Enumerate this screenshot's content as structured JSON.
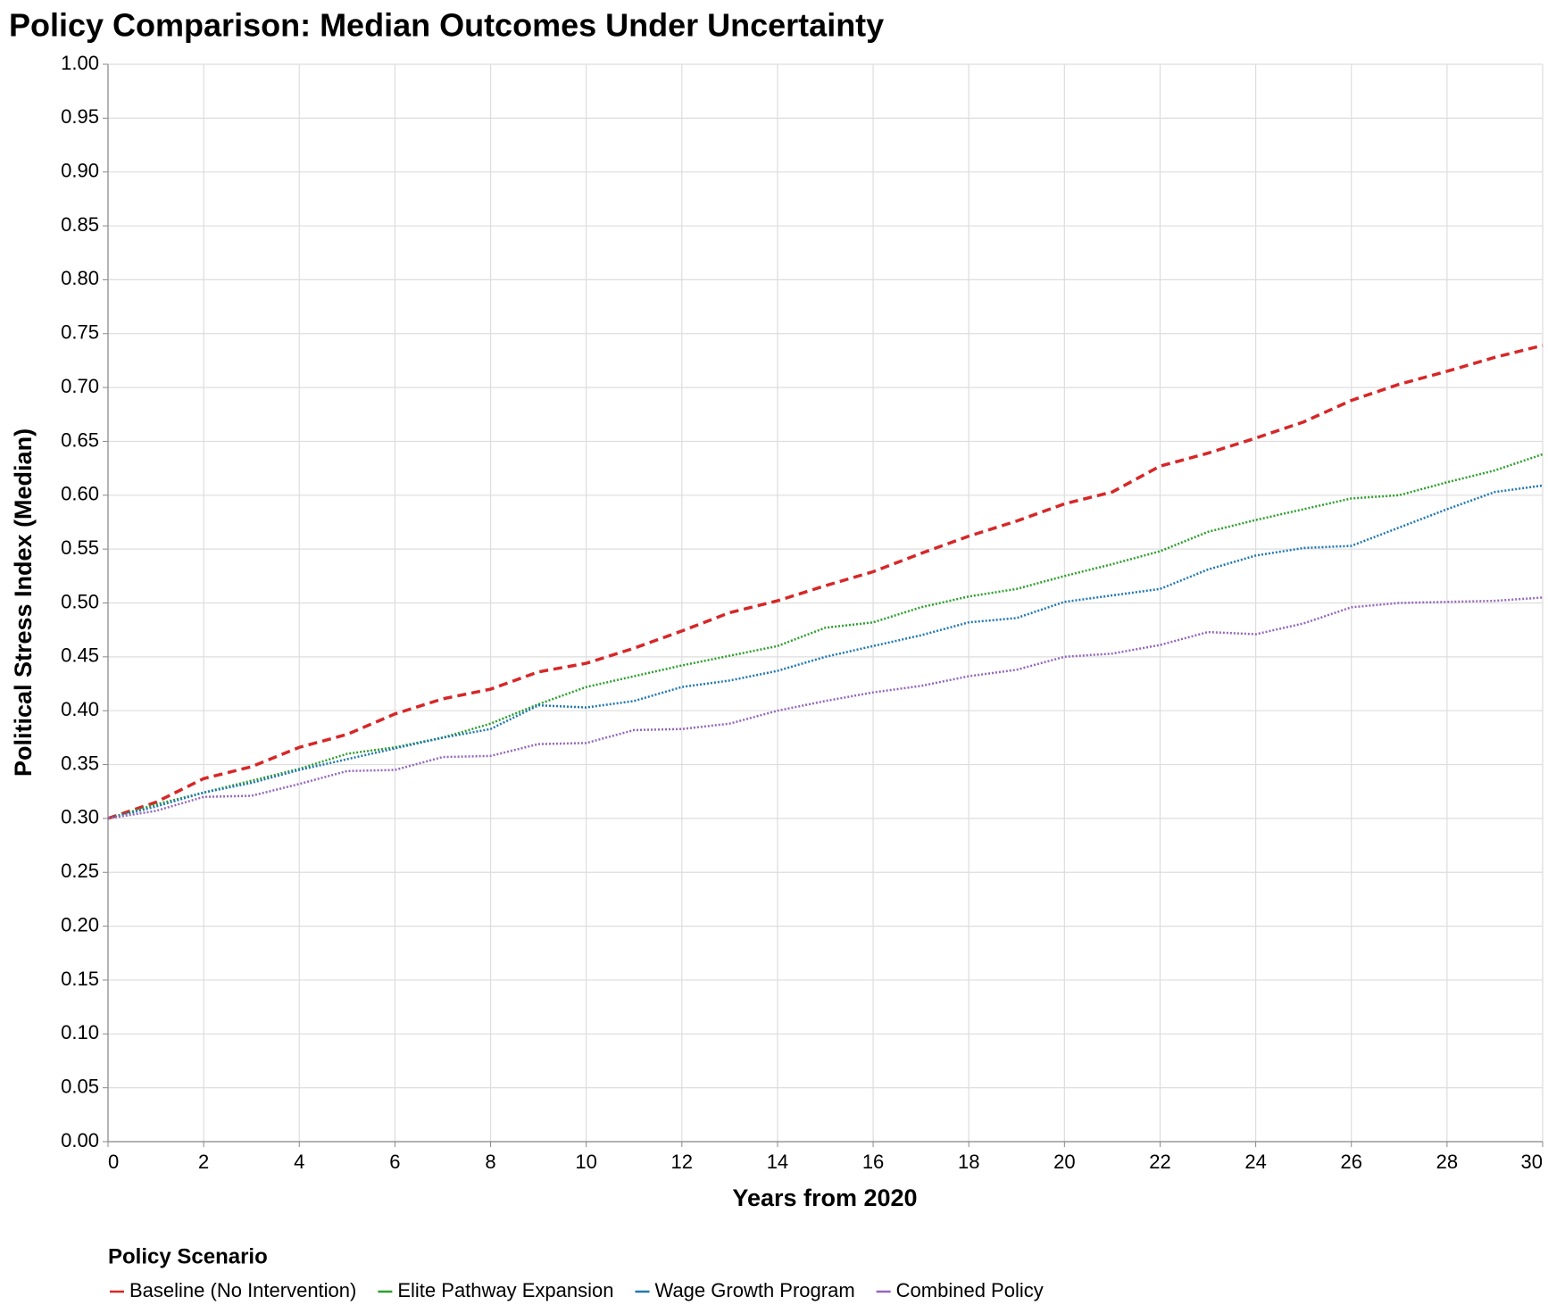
{
  "chart_data": {
    "type": "line",
    "title": "Policy Comparison: Median Outcomes Under Uncertainty",
    "x_label": "Years from 2020",
    "y_label": "Political Stress Index (Median)",
    "x": [
      0,
      1,
      2,
      3,
      4,
      5,
      6,
      7,
      8,
      9,
      10,
      11,
      12,
      13,
      14,
      15,
      16,
      17,
      18,
      19,
      20,
      21,
      22,
      23,
      24,
      25,
      26,
      27,
      28,
      29,
      30
    ],
    "series": [
      {
        "name": "Baseline (No Intervention)",
        "color": "#d62728",
        "dash": "dashed",
        "values": [
          0.3,
          0.315,
          0.337,
          0.348,
          0.366,
          0.378,
          0.397,
          0.411,
          0.42,
          0.436,
          0.444,
          0.458,
          0.474,
          0.491,
          0.502,
          0.516,
          0.529,
          0.546,
          0.562,
          0.576,
          0.592,
          0.603,
          0.627,
          0.639,
          0.653,
          0.668,
          0.688,
          0.703,
          0.715,
          0.728,
          0.739
        ]
      },
      {
        "name": "Elite Pathway Expansion",
        "color": "#2ca02c",
        "dash": "dotted",
        "values": [
          0.3,
          0.313,
          0.324,
          0.335,
          0.346,
          0.36,
          0.366,
          0.375,
          0.388,
          0.406,
          0.422,
          0.432,
          0.442,
          0.451,
          0.46,
          0.477,
          0.482,
          0.496,
          0.506,
          0.513,
          0.525,
          0.536,
          0.548,
          0.566,
          0.577,
          0.587,
          0.597,
          0.6,
          0.612,
          0.623,
          0.638
        ]
      },
      {
        "name": "Wage Growth Program",
        "color": "#1f77b4",
        "dash": "dotted",
        "values": [
          0.3,
          0.311,
          0.324,
          0.333,
          0.345,
          0.355,
          0.365,
          0.375,
          0.383,
          0.405,
          0.403,
          0.409,
          0.422,
          0.428,
          0.437,
          0.45,
          0.46,
          0.47,
          0.482,
          0.486,
          0.501,
          0.507,
          0.513,
          0.531,
          0.544,
          0.551,
          0.553,
          0.57,
          0.587,
          0.603,
          0.609
        ]
      },
      {
        "name": "Combined Policy",
        "color": "#9467bd",
        "dash": "dotted",
        "values": [
          0.3,
          0.307,
          0.32,
          0.321,
          0.332,
          0.344,
          0.345,
          0.357,
          0.358,
          0.369,
          0.37,
          0.382,
          0.383,
          0.388,
          0.4,
          0.409,
          0.417,
          0.423,
          0.432,
          0.438,
          0.45,
          0.453,
          0.461,
          0.473,
          0.471,
          0.481,
          0.496,
          0.5,
          0.501,
          0.502,
          0.505
        ]
      }
    ],
    "xlim": [
      0,
      30
    ],
    "xticks": [
      0,
      2,
      4,
      6,
      8,
      10,
      12,
      14,
      16,
      18,
      20,
      22,
      24,
      26,
      28,
      30
    ],
    "ylim": [
      0,
      1
    ],
    "yticks": [
      {
        "value": 0,
        "label": "0.00"
      },
      {
        "value": 0.05,
        "label": "0.05"
      },
      {
        "value": 0.1,
        "label": "0.10"
      },
      {
        "value": 0.15,
        "label": "0.15"
      },
      {
        "value": 0.2,
        "label": "0.20"
      },
      {
        "value": 0.25,
        "label": "0.25"
      },
      {
        "value": 0.3,
        "label": "0.30"
      },
      {
        "value": 0.35,
        "label": "0.35"
      },
      {
        "value": 0.4,
        "label": "0.40"
      },
      {
        "value": 0.45,
        "label": "0.45"
      },
      {
        "value": 0.5,
        "label": "0.50"
      },
      {
        "value": 0.55,
        "label": "0.55"
      },
      {
        "value": 0.6,
        "label": "0.60"
      },
      {
        "value": 0.65,
        "label": "0.65"
      },
      {
        "value": 0.7,
        "label": "0.70"
      },
      {
        "value": 0.75,
        "label": "0.75"
      },
      {
        "value": 0.8,
        "label": "0.80"
      },
      {
        "value": 0.85,
        "label": "0.85"
      },
      {
        "value": 0.9,
        "label": "0.90"
      },
      {
        "value": 0.95,
        "label": "0.95"
      },
      {
        "value": 1,
        "label": "1.00"
      }
    ],
    "grid": true,
    "legend_title": "Policy Scenario",
    "legend_position": "bottom"
  }
}
